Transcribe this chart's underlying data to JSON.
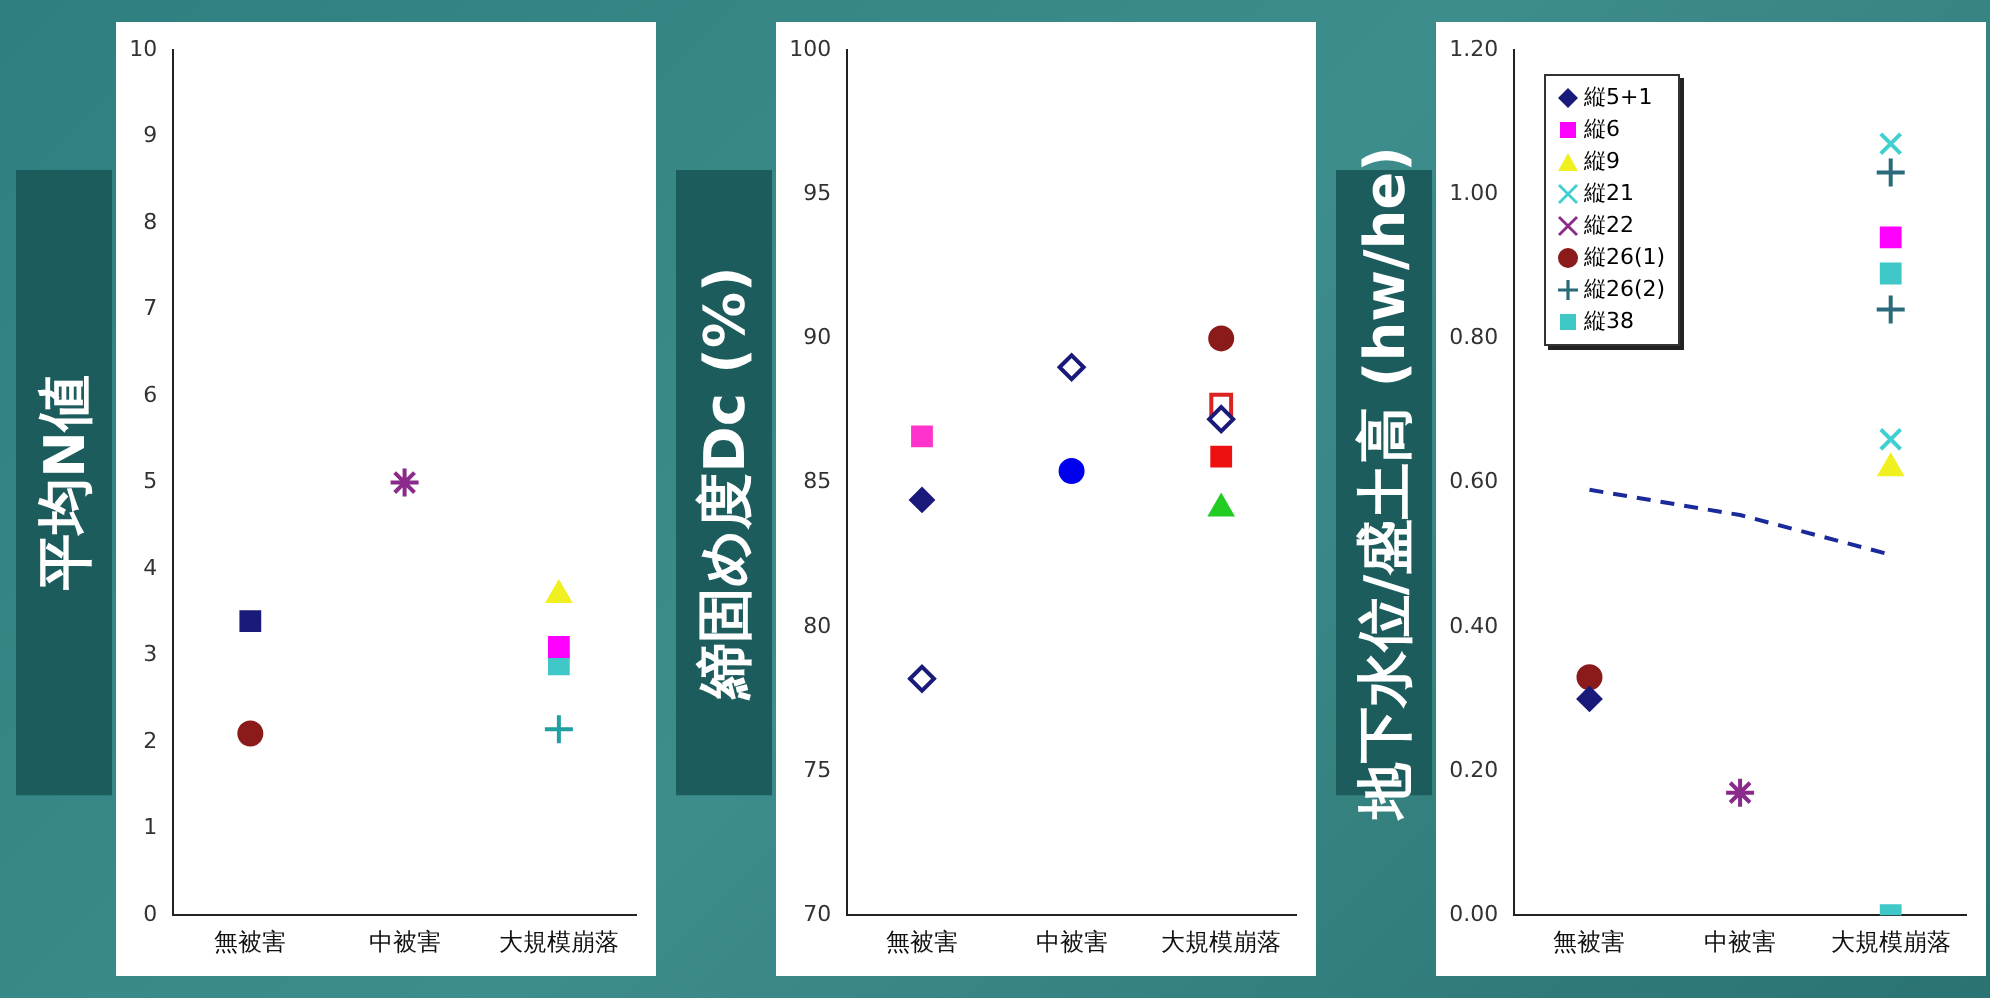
{
  "chart_data": [
    {
      "type": "scatter",
      "ylabel": "平均N値",
      "categories": [
        "無被害",
        "中被害",
        "大規模崩落"
      ],
      "ylim": [
        0,
        10
      ],
      "yticks": [
        0,
        1,
        2,
        3,
        4,
        5,
        6,
        7,
        8,
        9,
        10
      ],
      "grid": false,
      "legend": false,
      "series": [
        {
          "color": "#1a1a7a",
          "marker": "square",
          "x": [
            "無被害"
          ],
          "values": [
            3.4
          ]
        },
        {
          "color": "#8b1a1a",
          "marker": "circle",
          "x": [
            "無被害"
          ],
          "values": [
            2.1
          ]
        },
        {
          "color": "#8a2a8a",
          "marker": "cross",
          "x": [
            "中被害"
          ],
          "values": [
            5.0
          ]
        },
        {
          "color": "#f0f020",
          "marker": "triangle",
          "x": [
            "大規模崩落"
          ],
          "values": [
            3.7
          ]
        },
        {
          "color": "#ff00ff",
          "marker": "square",
          "x": [
            "大規模崩落"
          ],
          "values": [
            3.1
          ]
        },
        {
          "color": "#40c8c8",
          "marker": "square",
          "x": [
            "大規模崩落"
          ],
          "values": [
            2.9
          ]
        },
        {
          "color": "#20a0a0",
          "marker": "plus",
          "x": [
            "大規模崩落"
          ],
          "values": [
            2.15
          ]
        }
      ]
    },
    {
      "type": "scatter",
      "ylabel": "締固め度Dc (%)",
      "categories": [
        "無被害",
        "中被害",
        "大規模崩落"
      ],
      "ylim": [
        70,
        100
      ],
      "yticks": [
        70,
        75,
        80,
        85,
        90,
        95,
        100
      ],
      "grid": false,
      "legend": false,
      "series": [
        {
          "color": "#ff33cc",
          "marker": "square",
          "x": [
            "無被害"
          ],
          "values": [
            86.6
          ]
        },
        {
          "color": "#1a1a7a",
          "marker": "diamond",
          "x": [
            "無被害"
          ],
          "values": [
            84.4
          ]
        },
        {
          "color": "#1a1a7a",
          "marker": "diamond-open",
          "x": [
            "無被害",
            "中被害",
            "大規模崩落"
          ],
          "values": [
            78.2,
            89.0,
            87.2
          ]
        },
        {
          "color": "#0000ee",
          "marker": "circle",
          "x": [
            "中被害"
          ],
          "values": [
            85.4
          ]
        },
        {
          "color": "#8b1a1a",
          "marker": "circle",
          "x": [
            "大規模崩落"
          ],
          "values": [
            90.0
          ]
        },
        {
          "color": "#dd2222",
          "marker": "square-open",
          "x": [
            "大規模崩落"
          ],
          "values": [
            87.7
          ]
        },
        {
          "color": "#ee1111",
          "marker": "square",
          "x": [
            "大規模崩落"
          ],
          "values": [
            85.9
          ]
        },
        {
          "color": "#22cc22",
          "marker": "triangle",
          "x": [
            "大規模崩落"
          ],
          "values": [
            84.1
          ]
        }
      ]
    },
    {
      "type": "scatter",
      "ylabel": "地下水位/盛土高 (hw/he)",
      "categories": [
        "無被害",
        "中被害",
        "大規模崩落"
      ],
      "ylim": [
        0,
        1.2
      ],
      "yticks": [
        {
          "value": 0,
          "label": "0.00"
        },
        {
          "value": 0.2,
          "label": "0.20"
        },
        {
          "value": 0.4,
          "label": "0.40"
        },
        {
          "value": 0.6,
          "label": "0.60"
        },
        {
          "value": 0.8,
          "label": "0.80"
        },
        {
          "value": 1.0,
          "label": "1.00"
        },
        {
          "value": 1.2,
          "label": "1.20"
        }
      ],
      "grid": false,
      "legend": "top left",
      "series": [
        {
          "name": "縦5+1",
          "color": "#1a1a7a",
          "marker": "diamond",
          "x": [
            "無被害"
          ],
          "values": [
            0.3
          ]
        },
        {
          "name": "縦6",
          "color": "#ff00ff",
          "marker": "square",
          "x": [
            "大規模崩落"
          ],
          "values": [
            0.94
          ]
        },
        {
          "name": "縦9",
          "color": "#f0f020",
          "marker": "triangle",
          "x": [
            "大規模崩落"
          ],
          "values": [
            0.62
          ]
        },
        {
          "name": "縦21",
          "color": "#40d0d0",
          "marker": "x",
          "x": [
            "大規模崩落",
            "大規模崩落"
          ],
          "values": [
            1.07,
            0.66
          ]
        },
        {
          "name": "縦22",
          "color": "#8a2a8a",
          "marker": "cross",
          "x": [
            "中被害"
          ],
          "values": [
            0.17
          ]
        },
        {
          "name": "縦26(1)",
          "color": "#8b1a1a",
          "marker": "circle",
          "x": [
            "無被害"
          ],
          "values": [
            0.33
          ]
        },
        {
          "name": "縦26(2)",
          "color": "#2a6a7a",
          "marker": "plus",
          "x": [
            "大規模崩落",
            "大規模崩落"
          ],
          "values": [
            1.03,
            0.84
          ]
        },
        {
          "name": "縦38",
          "color": "#40c8c8",
          "marker": "square",
          "x": [
            "大規模崩落",
            "大規模崩落"
          ],
          "values": [
            0.89,
            0.0
          ]
        },
        {
          "type": "line",
          "color": "#1a2a9a",
          "marker": "none",
          "line_style": "dashed",
          "values": [
            0.59,
            0.555,
            0.5
          ]
        }
      ]
    }
  ]
}
